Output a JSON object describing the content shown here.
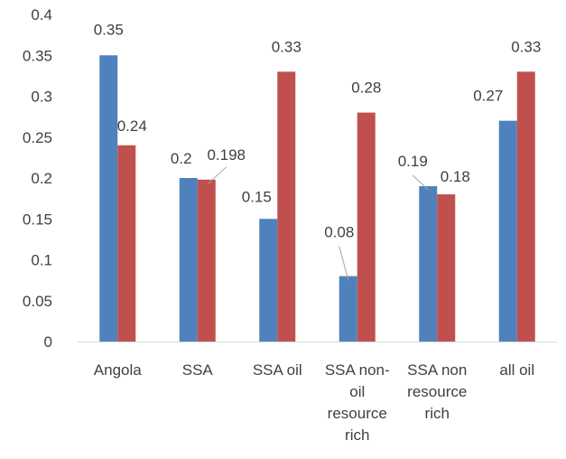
{
  "chart_data": {
    "type": "bar",
    "categories": [
      [
        "Angola"
      ],
      [
        "SSA"
      ],
      [
        "SSA oil"
      ],
      [
        "SSA non-",
        "oil",
        "resource",
        "rich"
      ],
      [
        "SSA non",
        "resource",
        "rich"
      ],
      [
        "all oil"
      ]
    ],
    "series": [
      {
        "color": "#4F81BD",
        "values": [
          0.35,
          0.2,
          0.15,
          0.08,
          0.19,
          0.27
        ],
        "labels": [
          "0.35",
          "0.2",
          "0.15",
          "0.08",
          "0.19",
          "0.27"
        ]
      },
      {
        "color": "#C0504D",
        "values": [
          0.24,
          0.198,
          0.33,
          0.28,
          0.18,
          0.33
        ],
        "labels": [
          "0.24",
          "0.198",
          "0.33",
          "0.28",
          "0.18",
          "0.33"
        ]
      }
    ],
    "ylim": [
      0,
      0.4
    ],
    "yticks": [
      "0",
      "0.05",
      "0.1",
      "0.15",
      "0.2",
      "0.25",
      "0.3",
      "0.35",
      "0.4"
    ],
    "ytick_values": [
      0,
      0.05,
      0.1,
      0.15,
      0.2,
      0.25,
      0.3,
      0.35,
      0.4
    ],
    "grid": false,
    "legend": "none"
  }
}
